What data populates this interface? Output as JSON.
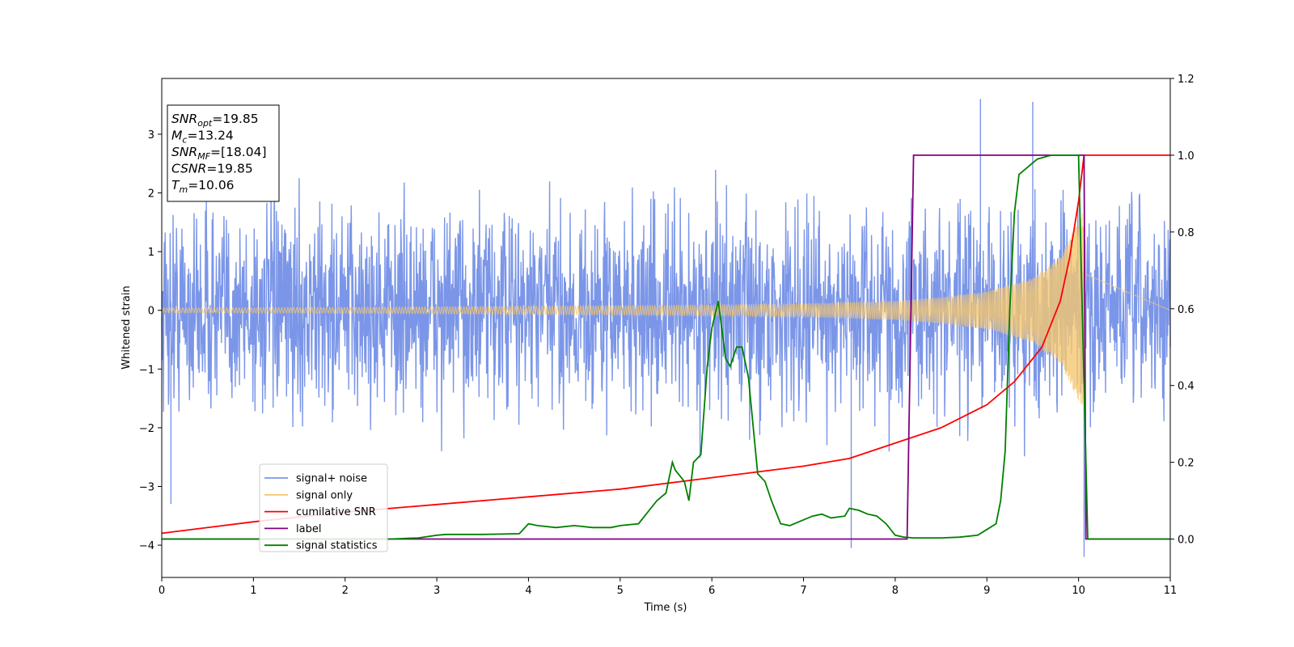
{
  "chart_data": {
    "type": "line",
    "title": "",
    "xlabel": "Time (s)",
    "ylabel": "Whitened strain",
    "y2label": "",
    "xlim": [
      0,
      11
    ],
    "ylim": [
      -4.55,
      3.95
    ],
    "y2lim": [
      -0.1,
      1.2
    ],
    "xticks": [
      "0",
      "1",
      "2",
      "3",
      "4",
      "5",
      "6",
      "7",
      "8",
      "9",
      "10",
      "11"
    ],
    "yticks": [
      "−4",
      "−3",
      "−2",
      "−1",
      "0",
      "1",
      "2",
      "3"
    ],
    "y2ticks": [
      "0.0",
      "0.2",
      "0.4",
      "0.6",
      "0.8",
      "1.0",
      "1.2"
    ],
    "grid": false,
    "legend_position": "lower-left",
    "annotation_lines": [
      {
        "pre": "SNR",
        "sub": "opt",
        "post": "=19.85"
      },
      {
        "pre": "M",
        "sub": "c",
        "post": "=13.24"
      },
      {
        "pre": "SNR",
        "sub": "MF",
        "post": "=[18.04]"
      },
      {
        "pre": "CSNR",
        "sub": "",
        "post": "=19.85"
      },
      {
        "pre": "T",
        "sub": "m",
        "post": "=10.06"
      }
    ],
    "series": [
      {
        "name": "signal+ noise",
        "axis": "left",
        "color": "#7b96e8",
        "style": "dense noise, amplitude about ±2.5 with spikes to ±3.6",
        "notable_points": [
          [
            0.1,
            -3.3
          ],
          [
            1.23,
            3.35
          ],
          [
            7.52,
            -4.05
          ],
          [
            8.93,
            3.6
          ],
          [
            9.5,
            3.55
          ],
          [
            10.06,
            -4.2
          ]
        ]
      },
      {
        "name": "signal only",
        "axis": "left",
        "color": "#f5c76f",
        "style": "chirp oscillating about 0, amplitude growing until merger",
        "envelope": {
          "x": [
            0,
            2,
            4,
            6,
            7,
            8,
            8.5,
            9,
            9.5,
            9.8,
            10.0,
            10.06
          ],
          "y": [
            0.04,
            0.05,
            0.07,
            0.09,
            0.11,
            0.16,
            0.22,
            0.32,
            0.55,
            0.9,
            1.55,
            1.7
          ]
        },
        "end_time": 10.06
      },
      {
        "name": "cumilative SNR",
        "axis": "right",
        "color": "#ff0000",
        "x": [
          0,
          1,
          2,
          3,
          4,
          5,
          6,
          7,
          7.5,
          8,
          8.5,
          9,
          9.3,
          9.6,
          9.8,
          9.9,
          10.0,
          10.06,
          11
        ],
        "y": [
          0.015,
          0.045,
          0.07,
          0.09,
          0.11,
          0.13,
          0.16,
          0.19,
          0.21,
          0.25,
          0.29,
          0.35,
          0.41,
          0.5,
          0.62,
          0.73,
          0.88,
          1.0,
          1.0
        ]
      },
      {
        "name": "label",
        "axis": "right",
        "color": "#800080",
        "x": [
          0,
          8.13,
          8.2,
          10.06,
          10.08,
          11
        ],
        "y": [
          0,
          0,
          1,
          1,
          0,
          0
        ]
      },
      {
        "name": "signal statistics",
        "axis": "right",
        "color": "#008000",
        "x": [
          0,
          0.5,
          1,
          1.5,
          2,
          2.5,
          2.8,
          3,
          3.1,
          3.5,
          3.9,
          4.0,
          4.1,
          4.3,
          4.5,
          4.7,
          4.9,
          5.0,
          5.2,
          5.4,
          5.5,
          5.57,
          5.6,
          5.7,
          5.75,
          5.8,
          5.88,
          5.95,
          6.0,
          6.07,
          6.15,
          6.2,
          6.27,
          6.33,
          6.4,
          6.5,
          6.58,
          6.65,
          6.75,
          6.85,
          7.0,
          7.1,
          7.2,
          7.3,
          7.45,
          7.5,
          7.6,
          7.7,
          7.8,
          7.9,
          8.0,
          8.1,
          8.2,
          8.5,
          8.7,
          8.9,
          9.0,
          9.1,
          9.15,
          9.2,
          9.25,
          9.3,
          9.35,
          9.45,
          9.55,
          9.7,
          9.9,
          10.0,
          10.05,
          10.1,
          10.15,
          11
        ],
        "y": [
          0.0,
          0.0,
          0.0,
          0.0,
          0.0,
          0.0,
          0.003,
          0.01,
          0.012,
          0.012,
          0.014,
          0.04,
          0.035,
          0.03,
          0.035,
          0.03,
          0.03,
          0.035,
          0.04,
          0.1,
          0.12,
          0.2,
          0.18,
          0.15,
          0.1,
          0.2,
          0.22,
          0.45,
          0.55,
          0.62,
          0.47,
          0.45,
          0.5,
          0.5,
          0.42,
          0.17,
          0.15,
          0.1,
          0.04,
          0.035,
          0.05,
          0.06,
          0.065,
          0.055,
          0.06,
          0.08,
          0.075,
          0.065,
          0.06,
          0.04,
          0.01,
          0.005,
          0.003,
          0.003,
          0.005,
          0.01,
          0.025,
          0.04,
          0.1,
          0.23,
          0.6,
          0.85,
          0.95,
          0.97,
          0.99,
          1.0,
          1.0,
          1.0,
          0.5,
          0.0,
          0.0,
          0.0
        ]
      }
    ]
  }
}
